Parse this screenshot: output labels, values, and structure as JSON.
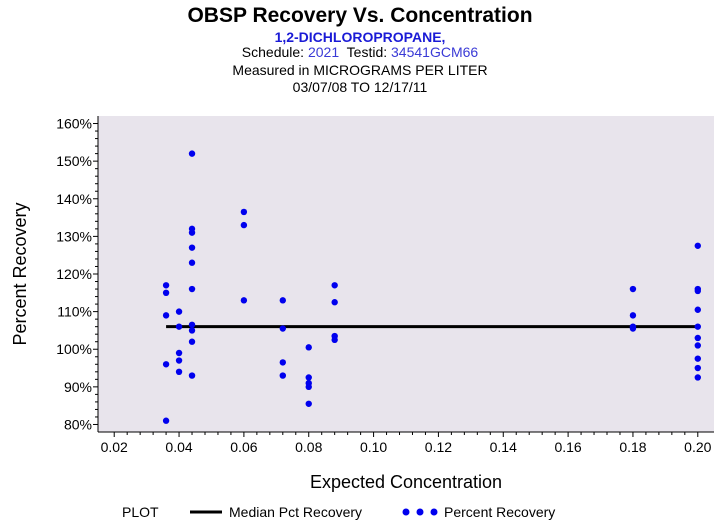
{
  "header": {
    "title": "OBSP Recovery Vs. Concentration",
    "compound": "1,2-DICHLOROPROPANE,",
    "schedule_label": "Schedule:",
    "schedule_value": "2021",
    "testid_label": "Testid:",
    "testid_value": "34541GCM66",
    "measured": "Measured in  MICROGRAMS PER LITER",
    "date_range": "03/07/08 TO 12/17/11"
  },
  "legend": {
    "plot_label": "PLOT",
    "median_label": "Median Pct Recovery",
    "recovery_label": "Percent Recovery"
  },
  "colors": {
    "plot_bg": "#e8e4ec",
    "point": "#0000ee",
    "median": "#000000"
  },
  "chart_data": {
    "type": "scatter",
    "xlabel": "Expected Concentration",
    "ylabel": "Percent Recovery",
    "xlim": [
      0.015,
      0.205
    ],
    "ylim": [
      78,
      162
    ],
    "x_ticks": [
      0.02,
      0.04,
      0.06,
      0.08,
      0.1,
      0.12,
      0.14,
      0.16,
      0.18,
      0.2
    ],
    "x_tick_labels": [
      "0.02",
      "0.04",
      "0.06",
      "0.08",
      "0.10",
      "0.12",
      "0.14",
      "0.16",
      "0.18",
      "0.20"
    ],
    "y_ticks": [
      80,
      90,
      100,
      110,
      120,
      130,
      140,
      150,
      160
    ],
    "y_tick_labels": [
      "80%",
      "90%",
      "100%",
      "110%",
      "120%",
      "130%",
      "140%",
      "150%",
      "160%"
    ],
    "median": {
      "name": "Median Pct Recovery",
      "value": 106,
      "x_range": [
        0.036,
        0.2
      ]
    },
    "series": [
      {
        "name": "Percent Recovery",
        "points": [
          [
            0.036,
            117
          ],
          [
            0.036,
            115
          ],
          [
            0.036,
            109
          ],
          [
            0.036,
            96
          ],
          [
            0.036,
            81
          ],
          [
            0.04,
            110
          ],
          [
            0.04,
            106
          ],
          [
            0.04,
            99
          ],
          [
            0.04,
            97
          ],
          [
            0.04,
            94
          ],
          [
            0.044,
            152
          ],
          [
            0.044,
            132
          ],
          [
            0.044,
            131
          ],
          [
            0.044,
            127
          ],
          [
            0.044,
            123
          ],
          [
            0.044,
            116
          ],
          [
            0.044,
            106.5
          ],
          [
            0.044,
            105
          ],
          [
            0.044,
            102
          ],
          [
            0.044,
            93
          ],
          [
            0.06,
            136.5
          ],
          [
            0.06,
            133
          ],
          [
            0.06,
            113
          ],
          [
            0.072,
            113
          ],
          [
            0.072,
            105.5
          ],
          [
            0.072,
            96.5
          ],
          [
            0.072,
            93
          ],
          [
            0.08,
            100.5
          ],
          [
            0.08,
            92.5
          ],
          [
            0.08,
            91
          ],
          [
            0.08,
            90
          ],
          [
            0.08,
            85.5
          ],
          [
            0.088,
            117
          ],
          [
            0.088,
            112.5
          ],
          [
            0.088,
            103.5
          ],
          [
            0.088,
            102.5
          ],
          [
            0.18,
            116
          ],
          [
            0.18,
            109
          ],
          [
            0.18,
            106
          ],
          [
            0.18,
            105.5
          ],
          [
            0.2,
            127.5
          ],
          [
            0.2,
            116
          ],
          [
            0.2,
            115.5
          ],
          [
            0.2,
            110.5
          ],
          [
            0.2,
            106
          ],
          [
            0.2,
            103
          ],
          [
            0.2,
            101
          ],
          [
            0.2,
            97.5
          ],
          [
            0.2,
            95
          ],
          [
            0.2,
            92.5
          ]
        ]
      }
    ]
  }
}
